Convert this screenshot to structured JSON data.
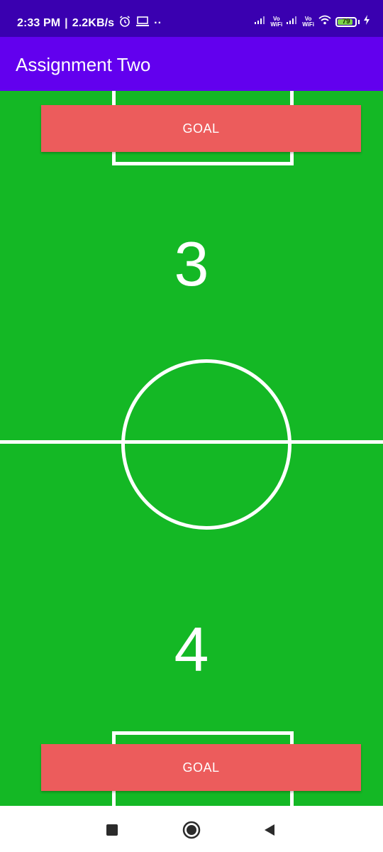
{
  "status_bar": {
    "time": "2:33 PM",
    "separator": "|",
    "speed": "2.2KB/s",
    "dots": "··",
    "vo_top": "Vo",
    "vo_bottom": "WiFi",
    "battery": "79"
  },
  "app_bar": {
    "title": "Assignment Two"
  },
  "field": {
    "top_goal_label": "GOAL",
    "bottom_goal_label": "GOAL",
    "top_score": "3",
    "bottom_score": "4"
  },
  "colors": {
    "status_bar": "#3a00b0",
    "app_bar": "#6200ee",
    "pitch": "#14b825",
    "goal_button": "#ec5c5c",
    "lines": "#ffffff"
  },
  "icons": [
    "alarm-icon",
    "laptop-icon",
    "signal-icon",
    "wifi-icon",
    "battery-icon",
    "charging-icon",
    "nav-recents-icon",
    "nav-home-icon",
    "nav-back-icon"
  ]
}
